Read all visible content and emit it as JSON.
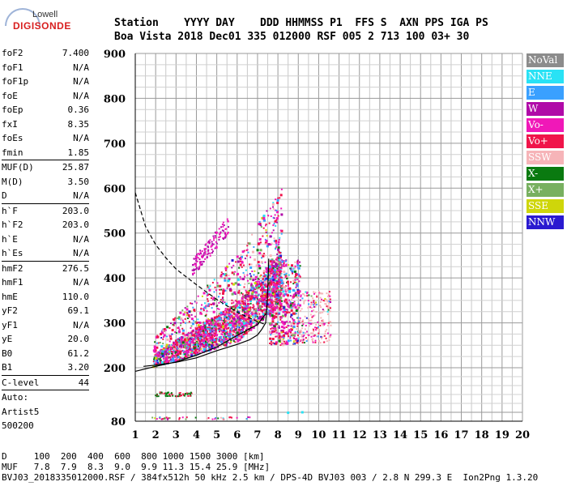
{
  "logo": {
    "line1": "Lowell",
    "line2": "DIGISONDE"
  },
  "header": {
    "row1": "Station    YYYY DAY    DDD HHMMSS P1  FFS S  AXN PPS IGA PS",
    "row2": "Boa Vista 2018 Dec01 335 012000 RSF 005 2 713 100 03+ 30"
  },
  "params": [
    {
      "k": "foF2",
      "v": "7.400"
    },
    {
      "k": "foF1",
      "v": "N/A"
    },
    {
      "k": "foF1p",
      "v": "N/A"
    },
    {
      "k": "foE",
      "v": "N/A"
    },
    {
      "k": "foEp",
      "v": "0.36"
    },
    {
      "k": "fxI",
      "v": "8.35"
    },
    {
      "k": "foEs",
      "v": "N/A"
    },
    {
      "k": "fmin",
      "v": "1.85",
      "sep": true
    },
    {
      "k": "MUF(D)",
      "v": "25.87"
    },
    {
      "k": "M(D)",
      "v": "3.50"
    },
    {
      "k": "D",
      "v": "N/A",
      "sep": true
    },
    {
      "k": "h`F",
      "v": "203.0"
    },
    {
      "k": "h`F2",
      "v": "203.0"
    },
    {
      "k": "h`E",
      "v": "N/A"
    },
    {
      "k": "h`Es",
      "v": "N/A",
      "sep": true
    },
    {
      "k": "hmF2",
      "v": "276.5"
    },
    {
      "k": "hmF1",
      "v": "N/A"
    },
    {
      "k": "hmE",
      "v": "110.0"
    },
    {
      "k": "yF2",
      "v": "69.1"
    },
    {
      "k": "yF1",
      "v": "N/A"
    },
    {
      "k": "yE",
      "v": "20.0"
    },
    {
      "k": "B0",
      "v": "61.2"
    },
    {
      "k": "B1",
      "v": "3.20",
      "sep": true
    },
    {
      "k": "C-level",
      "v": "44",
      "sep": true
    },
    {
      "k": "Auto:",
      "v": ""
    },
    {
      "k": "Artist5",
      "v": ""
    },
    {
      "k": "500200",
      "v": ""
    }
  ],
  "legend": [
    {
      "label": "NoVal",
      "color": "#8c8c8c"
    },
    {
      "label": "NNE",
      "color": "#29e2f5"
    },
    {
      "label": "E",
      "color": "#3aa0ff"
    },
    {
      "label": "W",
      "color": "#b00aa8"
    },
    {
      "label": "Vo-",
      "color": "#f018b8"
    },
    {
      "label": "Vo+",
      "color": "#f0144a"
    },
    {
      "label": "SSW",
      "color": "#f6b4b8"
    },
    {
      "label": "X-",
      "color": "#0a7a10"
    },
    {
      "label": "X+",
      "color": "#78b060"
    },
    {
      "label": "SSE",
      "color": "#cfd60a"
    },
    {
      "label": "NNW",
      "color": "#2a1ad0"
    }
  ],
  "footer": {
    "row1": "D     100  200  400  600  800 1000 1500 3000 [km]",
    "row2": "MUF   7.8  7.9  8.3  9.0  9.9 11.3 15.4 25.9 [MHz]",
    "row3": "BVJ03_2018335012000.RSF / 384fx512h 50 kHz 2.5 km / DPS-4D BVJ03 003 / 2.8 N 299.3 E  Ion2Png 1.3.20"
  },
  "chart_data": {
    "type": "scatter",
    "xlim": [
      1,
      20
    ],
    "ylim": [
      80,
      900
    ],
    "x_ticks": [
      "1",
      "2",
      "3",
      "4",
      "5",
      "6",
      "7",
      "8",
      "9",
      "10",
      "11",
      "12",
      "13",
      "14",
      "15",
      "16",
      "17",
      "18",
      "19",
      "20"
    ],
    "y_ticks": [
      "900",
      "800",
      "700",
      "600",
      "500",
      "400",
      "300",
      "200",
      "80"
    ],
    "grid": true,
    "series": [
      {
        "name": "trace",
        "values": [
          [
            1.4,
            203
          ],
          [
            2,
            206
          ],
          [
            3,
            212
          ],
          [
            4,
            222
          ],
          [
            5,
            238
          ],
          [
            6,
            252
          ],
          [
            6.6,
            262
          ],
          [
            7,
            273
          ],
          [
            7.2,
            285
          ],
          [
            7.4,
            300
          ],
          [
            7.45,
            330
          ],
          [
            7.5,
            370
          ],
          [
            7.55,
            443
          ]
        ]
      },
      {
        "name": "profile",
        "values": [
          [
            1,
            192
          ],
          [
            2,
            203
          ],
          [
            3,
            213
          ],
          [
            4,
            228
          ],
          [
            5,
            246
          ],
          [
            6,
            272
          ],
          [
            7,
            296
          ],
          [
            7.4,
            320
          ]
        ]
      },
      {
        "name": "dashed",
        "values": [
          [
            1,
            590
          ],
          [
            1.5,
            515
          ],
          [
            2,
            474
          ],
          [
            2.5,
            445
          ],
          [
            3,
            420
          ],
          [
            4,
            385
          ],
          [
            5,
            352
          ],
          [
            6,
            324
          ],
          [
            6.5,
            313
          ],
          [
            7,
            303
          ],
          [
            7.4,
            296
          ]
        ]
      }
    ]
  }
}
